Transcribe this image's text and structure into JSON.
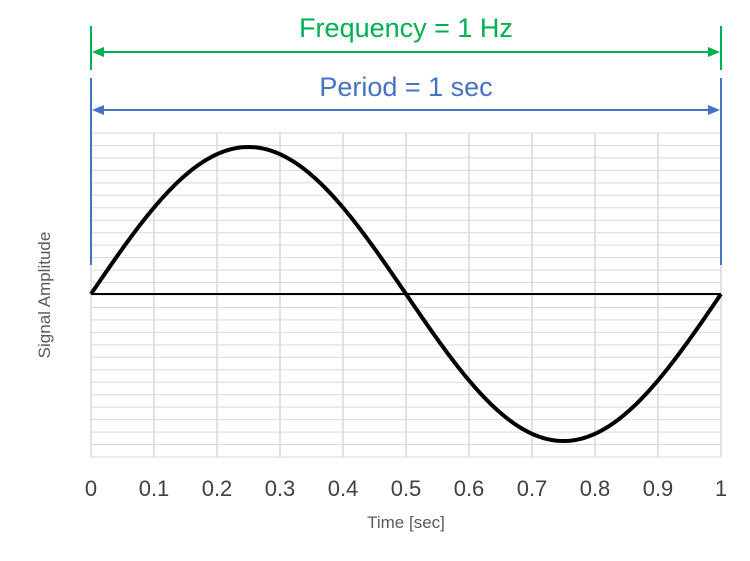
{
  "chart_data": {
    "type": "line",
    "title": "",
    "xlabel": "Time [sec]",
    "ylabel": "Signal Amplitude",
    "xlim": [
      0,
      1
    ],
    "ylim": [
      -1.05,
      1.05
    ],
    "x_ticks": [
      "0",
      "0.1",
      "0.2",
      "0.3",
      "0.4",
      "0.5",
      "0.6",
      "0.7",
      "0.8",
      "0.9",
      "1"
    ],
    "grid": true,
    "series": [
      {
        "function": "sin(2*pi*x)",
        "color": "#000000",
        "x": [
          0,
          0.05,
          0.1,
          0.15,
          0.2,
          0.25,
          0.3,
          0.35,
          0.4,
          0.45,
          0.5,
          0.55,
          0.6,
          0.65,
          0.7,
          0.75,
          0.8,
          0.85,
          0.9,
          0.95,
          1
        ],
        "y": [
          0,
          0.309,
          0.588,
          0.809,
          0.951,
          1,
          0.951,
          0.809,
          0.588,
          0.309,
          0,
          -0.309,
          -0.588,
          -0.809,
          -0.951,
          -1,
          -0.951,
          -0.809,
          -0.588,
          -0.309,
          0
        ]
      }
    ],
    "annotations": [
      {
        "text": "Frequency = 1 Hz",
        "color": "#00b050",
        "from": 0,
        "to": 1
      },
      {
        "text": "Period = 1 sec",
        "color": "#4472c4",
        "from": 0,
        "to": 1
      }
    ]
  }
}
